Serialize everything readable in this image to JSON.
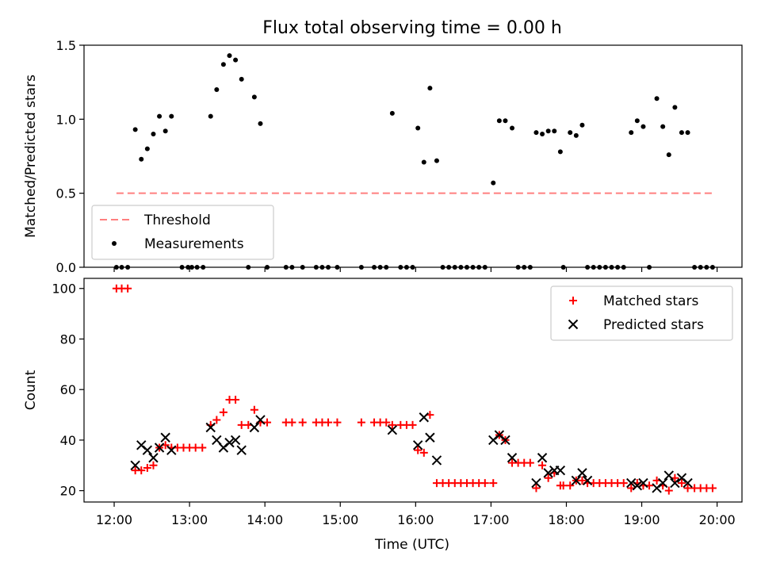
{
  "title": "Flux total observing time = 0.00 h",
  "x_axis": {
    "label": "Time (UTC)",
    "min": 11.6,
    "max": 20.33,
    "ticks": [
      12,
      13,
      14,
      15,
      16,
      17,
      18,
      19,
      20
    ],
    "tick_labels": [
      "12:00",
      "13:00",
      "14:00",
      "15:00",
      "16:00",
      "17:00",
      "18:00",
      "19:00",
      "20:00"
    ]
  },
  "colors": {
    "threshold": "#ff7f7f",
    "matched": "#ff0000",
    "predicted": "#000000",
    "measurements": "#000000"
  },
  "chart_data": [
    {
      "type": "scatter",
      "ylabel": "Matched/Predicted stars",
      "ylim": [
        0,
        1.5
      ],
      "yticks": [
        0,
        0.5,
        1.0,
        1.5
      ],
      "ytick_labels": [
        "0.0",
        "0.5",
        "1.0",
        "1.5"
      ],
      "grid": false,
      "legend_position": "lower-left",
      "legend": [
        "Threshold",
        "Measurements"
      ],
      "threshold": {
        "name": "Threshold",
        "value": 0.5,
        "x_start": 12.03,
        "x_end": 19.95
      },
      "series": [
        {
          "name": "Measurements",
          "points": [
            [
              12.03,
              0
            ],
            [
              12.1,
              0
            ],
            [
              12.18,
              0
            ],
            [
              12.28,
              0.93
            ],
            [
              12.36,
              0.73
            ],
            [
              12.44,
              0.8
            ],
            [
              12.52,
              0.9
            ],
            [
              12.6,
              1.02
            ],
            [
              12.68,
              0.92
            ],
            [
              12.76,
              1.02
            ],
            [
              12.9,
              0
            ],
            [
              12.98,
              0
            ],
            [
              13.03,
              0
            ],
            [
              13.1,
              0
            ],
            [
              13.18,
              0
            ],
            [
              13.28,
              1.02
            ],
            [
              13.36,
              1.2
            ],
            [
              13.45,
              1.37
            ],
            [
              13.53,
              1.43
            ],
            [
              13.61,
              1.4
            ],
            [
              13.69,
              1.27
            ],
            [
              13.78,
              0
            ],
            [
              13.86,
              1.15
            ],
            [
              13.94,
              0.97
            ],
            [
              14.03,
              0
            ],
            [
              14.28,
              0
            ],
            [
              14.36,
              0
            ],
            [
              14.5,
              0
            ],
            [
              14.68,
              0
            ],
            [
              14.76,
              0
            ],
            [
              14.84,
              0
            ],
            [
              14.96,
              0
            ],
            [
              15.28,
              0
            ],
            [
              15.45,
              0
            ],
            [
              15.53,
              0
            ],
            [
              15.61,
              0
            ],
            [
              15.69,
              1.04
            ],
            [
              15.8,
              0
            ],
            [
              15.88,
              0
            ],
            [
              15.96,
              0
            ],
            [
              16.03,
              0.94
            ],
            [
              16.11,
              0.71
            ],
            [
              16.19,
              1.21
            ],
            [
              16.28,
              0.72
            ],
            [
              16.36,
              0
            ],
            [
              16.44,
              0
            ],
            [
              16.52,
              0
            ],
            [
              16.6,
              0
            ],
            [
              16.68,
              0
            ],
            [
              16.76,
              0
            ],
            [
              16.84,
              0
            ],
            [
              16.92,
              0
            ],
            [
              17.03,
              0.57
            ],
            [
              17.11,
              0.99
            ],
            [
              17.19,
              0.99
            ],
            [
              17.28,
              0.94
            ],
            [
              17.36,
              0
            ],
            [
              17.44,
              0
            ],
            [
              17.52,
              0
            ],
            [
              17.6,
              0.91
            ],
            [
              17.68,
              0.9
            ],
            [
              17.76,
              0.92
            ],
            [
              17.84,
              0.92
            ],
            [
              17.92,
              0.78
            ],
            [
              17.96,
              0
            ],
            [
              18.05,
              0.91
            ],
            [
              18.13,
              0.89
            ],
            [
              18.21,
              0.96
            ],
            [
              18.28,
              0
            ],
            [
              18.36,
              0
            ],
            [
              18.44,
              0
            ],
            [
              18.52,
              0
            ],
            [
              18.6,
              0
            ],
            [
              18.68,
              0
            ],
            [
              18.76,
              0
            ],
            [
              18.86,
              0.91
            ],
            [
              18.94,
              0.99
            ],
            [
              19.02,
              0.95
            ],
            [
              19.1,
              0
            ],
            [
              19.2,
              1.14
            ],
            [
              19.28,
              0.95
            ],
            [
              19.36,
              0.76
            ],
            [
              19.44,
              1.08
            ],
            [
              19.53,
              0.91
            ],
            [
              19.61,
              0.91
            ],
            [
              19.7,
              0
            ],
            [
              19.78,
              0
            ],
            [
              19.86,
              0
            ],
            [
              19.94,
              0
            ]
          ]
        }
      ]
    },
    {
      "type": "scatter",
      "ylabel": "Count",
      "xlabel": "Time (UTC)",
      "ylim": [
        15.5,
        104
      ],
      "yticks": [
        20,
        40,
        60,
        80,
        100
      ],
      "ytick_labels": [
        "20",
        "40",
        "60",
        "80",
        "100"
      ],
      "grid": false,
      "legend_position": "upper-right",
      "legend": [
        "Matched stars",
        "Predicted stars"
      ],
      "series": [
        {
          "name": "Matched stars",
          "marker": "+",
          "points": [
            [
              12.03,
              100
            ],
            [
              12.1,
              100
            ],
            [
              12.18,
              100
            ],
            [
              12.28,
              28
            ],
            [
              12.36,
              28
            ],
            [
              12.44,
              29
            ],
            [
              12.52,
              30
            ],
            [
              12.6,
              37
            ],
            [
              12.68,
              38
            ],
            [
              12.76,
              37
            ],
            [
              12.84,
              37
            ],
            [
              12.92,
              37
            ],
            [
              13.0,
              37
            ],
            [
              13.08,
              37
            ],
            [
              13.17,
              37
            ],
            [
              13.28,
              46
            ],
            [
              13.36,
              48
            ],
            [
              13.45,
              51
            ],
            [
              13.53,
              56
            ],
            [
              13.61,
              56
            ],
            [
              13.69,
              46
            ],
            [
              13.78,
              46
            ],
            [
              13.86,
              52
            ],
            [
              13.94,
              47
            ],
            [
              14.03,
              47
            ],
            [
              14.28,
              47
            ],
            [
              14.36,
              47
            ],
            [
              14.5,
              47
            ],
            [
              14.68,
              47
            ],
            [
              14.76,
              47
            ],
            [
              14.84,
              47
            ],
            [
              14.96,
              47
            ],
            [
              15.28,
              47
            ],
            [
              15.45,
              47
            ],
            [
              15.53,
              47
            ],
            [
              15.61,
              47
            ],
            [
              15.69,
              46
            ],
            [
              15.8,
              46
            ],
            [
              15.88,
              46
            ],
            [
              15.96,
              46
            ],
            [
              16.03,
              36
            ],
            [
              16.11,
              35
            ],
            [
              16.19,
              50
            ],
            [
              16.28,
              23
            ],
            [
              16.36,
              23
            ],
            [
              16.44,
              23
            ],
            [
              16.52,
              23
            ],
            [
              16.6,
              23
            ],
            [
              16.68,
              23
            ],
            [
              16.76,
              23
            ],
            [
              16.84,
              23
            ],
            [
              16.92,
              23
            ],
            [
              17.03,
              23
            ],
            [
              17.11,
              42
            ],
            [
              17.19,
              40
            ],
            [
              17.28,
              31
            ],
            [
              17.36,
              31
            ],
            [
              17.44,
              31
            ],
            [
              17.52,
              31
            ],
            [
              17.6,
              21
            ],
            [
              17.68,
              30
            ],
            [
              17.76,
              25
            ],
            [
              17.84,
              27
            ],
            [
              17.92,
              22
            ],
            [
              17.96,
              22
            ],
            [
              18.05,
              22
            ],
            [
              18.13,
              24
            ],
            [
              18.21,
              24
            ],
            [
              18.28,
              23
            ],
            [
              18.36,
              23
            ],
            [
              18.44,
              23
            ],
            [
              18.52,
              23
            ],
            [
              18.6,
              23
            ],
            [
              18.68,
              23
            ],
            [
              18.76,
              23
            ],
            [
              18.86,
              21
            ],
            [
              18.94,
              23
            ],
            [
              19.02,
              22
            ],
            [
              19.1,
              22
            ],
            [
              19.2,
              24
            ],
            [
              19.28,
              22
            ],
            [
              19.36,
              20
            ],
            [
              19.44,
              25
            ],
            [
              19.53,
              23
            ],
            [
              19.61,
              21
            ],
            [
              19.7,
              21
            ],
            [
              19.78,
              21
            ],
            [
              19.86,
              21
            ],
            [
              19.94,
              21
            ]
          ]
        },
        {
          "name": "Predicted stars",
          "marker": "x",
          "points": [
            [
              12.28,
              30
            ],
            [
              12.36,
              38
            ],
            [
              12.44,
              36
            ],
            [
              12.52,
              33
            ],
            [
              12.6,
              37
            ],
            [
              12.68,
              41
            ],
            [
              12.76,
              36
            ],
            [
              13.28,
              45
            ],
            [
              13.36,
              40
            ],
            [
              13.45,
              37
            ],
            [
              13.53,
              39
            ],
            [
              13.61,
              40
            ],
            [
              13.69,
              36
            ],
            [
              13.86,
              45
            ],
            [
              13.94,
              48
            ],
            [
              15.69,
              44
            ],
            [
              16.03,
              38
            ],
            [
              16.11,
              49
            ],
            [
              16.19,
              41
            ],
            [
              16.28,
              32
            ],
            [
              17.03,
              40
            ],
            [
              17.11,
              42
            ],
            [
              17.19,
              40
            ],
            [
              17.28,
              33
            ],
            [
              17.6,
              23
            ],
            [
              17.68,
              33
            ],
            [
              17.76,
              27
            ],
            [
              17.84,
              28
            ],
            [
              17.92,
              28
            ],
            [
              18.13,
              24
            ],
            [
              18.21,
              27
            ],
            [
              18.28,
              24
            ],
            [
              18.86,
              23
            ],
            [
              18.94,
              22
            ],
            [
              19.02,
              23
            ],
            [
              19.2,
              21
            ],
            [
              19.28,
              23
            ],
            [
              19.36,
              26
            ],
            [
              19.44,
              23
            ],
            [
              19.53,
              25
            ],
            [
              19.61,
              23
            ]
          ]
        }
      ]
    }
  ]
}
